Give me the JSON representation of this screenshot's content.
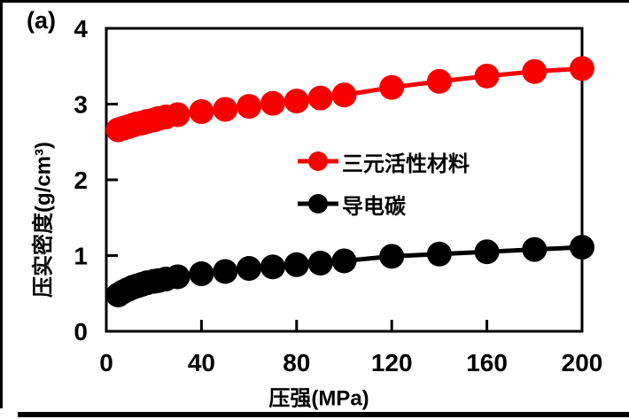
{
  "figure": {
    "panel_label": "(a)",
    "background_color": "#ffffff",
    "frame_color": "#000000"
  },
  "chart_data": {
    "type": "line",
    "title": "",
    "xlabel": "压强(MPa)",
    "ylabel": "压实密度(g/cm³)",
    "xlim": [
      0,
      200
    ],
    "ylim": [
      0,
      4
    ],
    "xticks": [
      0,
      40,
      80,
      120,
      160,
      200
    ],
    "yticks": [
      0,
      1,
      2,
      3,
      4
    ],
    "grid": false,
    "legend_position": "center",
    "x": [
      5,
      7,
      9,
      11,
      13,
      15,
      17,
      20,
      22,
      25,
      30,
      40,
      50,
      60,
      70,
      80,
      90,
      100,
      120,
      140,
      160,
      180,
      200
    ],
    "series": [
      {
        "name": "三元活性材料",
        "color": "#f90000",
        "marker": "circle",
        "values": [
          2.66,
          2.68,
          2.7,
          2.72,
          2.74,
          2.75,
          2.77,
          2.79,
          2.81,
          2.83,
          2.86,
          2.9,
          2.93,
          2.97,
          3.01,
          3.04,
          3.08,
          3.12,
          3.22,
          3.3,
          3.37,
          3.43,
          3.47
        ]
      },
      {
        "name": "导电碳",
        "color": "#000000",
        "marker": "circle",
        "values": [
          0.48,
          0.52,
          0.55,
          0.58,
          0.6,
          0.62,
          0.64,
          0.66,
          0.67,
          0.69,
          0.72,
          0.76,
          0.79,
          0.83,
          0.85,
          0.88,
          0.9,
          0.93,
          0.99,
          1.02,
          1.05,
          1.08,
          1.11
        ]
      }
    ]
  }
}
